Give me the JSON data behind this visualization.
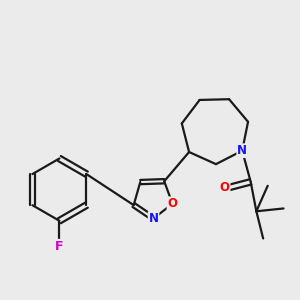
{
  "bg_color": "#ebebeb",
  "bond_color": "#1a1a1a",
  "bond_width": 1.6,
  "dbo": 0.05,
  "atom_colors": {
    "N": "#1414ff",
    "O": "#ff0000",
    "F": "#cc00cc"
  },
  "fs": 8.5
}
